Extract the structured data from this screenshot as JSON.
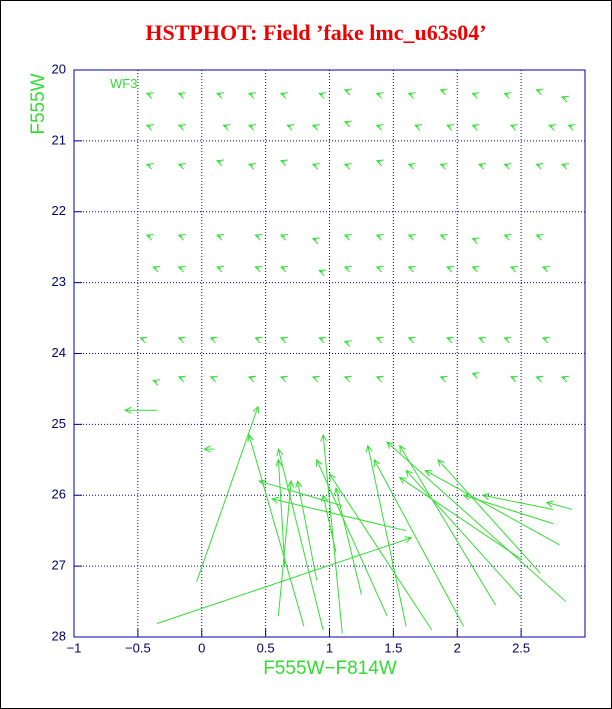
{
  "chart_data": {
    "type": "vector",
    "title": "HSTPHOT: Field ’fake lmc_u63s04’",
    "xlabel": "F555W−F814W",
    "ylabel": "F555W",
    "annotation": "WF3",
    "color": "#33dd33",
    "grid": true,
    "xlim": [
      -1,
      3
    ],
    "ylim": [
      28,
      20
    ],
    "xticks": [
      {
        "value": -1,
        "label": "−1"
      },
      {
        "value": -0.5,
        "label": "−0.5"
      },
      0,
      0.5,
      1,
      1.5,
      2,
      2.5
    ],
    "yticks": [
      20,
      21,
      22,
      23,
      24,
      25,
      26,
      27,
      28
    ],
    "x": [
      -0.35,
      -0.04,
      0.8,
      0.65,
      0.95,
      1.1,
      0.6,
      1.45,
      1.6,
      1.8,
      2.05,
      2.3,
      2.5,
      2.65,
      2.85,
      2.8,
      2.5,
      2.75,
      2.75,
      2.9,
      -0.35,
      0.1,
      1.1,
      1.6,
      1.05,
      0.9,
      1.25,
      -0.4,
      -0.15,
      0.15,
      0.4,
      0.65,
      0.95,
      1.15,
      1.4,
      1.65,
      1.9,
      2.15,
      2.4,
      2.65,
      2.85,
      -0.4,
      -0.15,
      0.2,
      0.4,
      0.7,
      0.9,
      1.15,
      1.4,
      1.7,
      1.95,
      2.15,
      2.45,
      2.75,
      2.9,
      -0.4,
      -0.15,
      0.15,
      0.4,
      0.65,
      0.9,
      1.15,
      1.4,
      1.65,
      1.9,
      2.2,
      2.4,
      2.65,
      2.85,
      -0.4,
      -0.15,
      0.15,
      0.45,
      0.65,
      0.9,
      1.15,
      1.4,
      1.65,
      1.9,
      2.15,
      2.4,
      2.65,
      -0.35,
      -0.15,
      0.15,
      0.45,
      0.65,
      0.95,
      1.15,
      1.4,
      1.65,
      1.95,
      2.15,
      2.45,
      2.7,
      -0.45,
      -0.15,
      0.1,
      0.45,
      0.65,
      0.95,
      1.15,
      1.4,
      1.65,
      1.95,
      2.2,
      2.4,
      2.7,
      -0.35,
      -0.15,
      0.1,
      0.4,
      0.65,
      0.9,
      1.15,
      1.4,
      1.9,
      2.15,
      2.45,
      2.65,
      2.85
    ],
    "y": [
      27.81,
      27.22,
      27.85,
      27.0,
      27.9,
      27.95,
      27.7,
      27.7,
      27.85,
      27.9,
      27.85,
      27.55,
      27.45,
      27.1,
      27.5,
      26.7,
      26.9,
      26.4,
      26.2,
      26.2,
      24.8,
      25.35,
      26.15,
      26.5,
      26.8,
      27.2,
      27.4,
      20.35,
      20.35,
      20.35,
      20.35,
      20.35,
      20.35,
      20.3,
      20.35,
      20.35,
      20.3,
      20.35,
      20.35,
      20.3,
      20.4,
      20.8,
      20.8,
      20.8,
      20.8,
      20.8,
      20.8,
      20.75,
      20.8,
      20.8,
      20.8,
      20.8,
      20.8,
      20.8,
      20.8,
      21.35,
      21.35,
      21.3,
      21.35,
      21.3,
      21.35,
      21.35,
      21.3,
      21.35,
      21.35,
      21.35,
      21.35,
      21.35,
      21.35,
      22.35,
      22.35,
      22.35,
      22.35,
      22.35,
      22.4,
      22.35,
      22.35,
      22.35,
      22.35,
      22.4,
      22.35,
      22.35,
      22.8,
      22.8,
      22.8,
      22.8,
      22.8,
      22.85,
      22.8,
      22.8,
      22.8,
      22.8,
      22.8,
      22.8,
      22.8,
      23.8,
      23.8,
      23.8,
      23.8,
      23.8,
      23.8,
      23.85,
      23.8,
      23.8,
      23.8,
      23.8,
      23.8,
      23.8,
      24.4,
      24.35,
      24.35,
      24.35,
      24.35,
      24.35,
      24.35,
      24.35,
      24.35,
      24.3,
      24.35,
      24.35,
      24.35
    ],
    "x_end": [
      1.64,
      0.44,
      0.37,
      0.6,
      0.6,
      0.95,
      0.7,
      0.9,
      1.3,
      1.0,
      1.35,
      1.55,
      1.6,
      1.85,
      1.45,
      1.75,
      1.55,
      2.05,
      2.2,
      2.7,
      -0.6,
      0.02,
      0.45,
      0.55,
      0.95,
      0.75,
      1.05,
      -0.43,
      -0.18,
      0.12,
      0.37,
      0.62,
      0.92,
      1.12,
      1.37,
      1.62,
      1.87,
      2.12,
      2.37,
      2.62,
      2.82,
      -0.43,
      -0.18,
      0.17,
      0.37,
      0.67,
      0.87,
      1.12,
      1.37,
      1.67,
      1.92,
      2.12,
      2.42,
      2.72,
      2.87,
      -0.43,
      -0.18,
      0.12,
      0.37,
      0.62,
      0.87,
      1.12,
      1.37,
      1.62,
      1.87,
      2.17,
      2.37,
      2.62,
      2.82,
      -0.43,
      -0.18,
      0.12,
      0.42,
      0.62,
      0.87,
      1.12,
      1.37,
      1.62,
      1.87,
      2.12,
      2.37,
      2.62,
      -0.38,
      -0.18,
      0.12,
      0.42,
      0.62,
      0.92,
      1.12,
      1.37,
      1.62,
      1.92,
      2.12,
      2.42,
      2.67,
      -0.48,
      -0.18,
      0.07,
      0.42,
      0.62,
      0.92,
      1.12,
      1.37,
      1.62,
      1.92,
      2.17,
      2.37,
      2.67,
      -0.38,
      -0.18,
      0.07,
      0.37,
      0.62,
      0.87,
      1.12,
      1.37,
      1.87,
      2.12,
      2.42,
      2.62,
      2.82
    ],
    "y_end": [
      26.6,
      24.75,
      25.15,
      25.5,
      25.35,
      25.15,
      25.8,
      25.5,
      25.3,
      25.7,
      25.5,
      25.3,
      25.65,
      25.5,
      25.25,
      25.65,
      25.75,
      26.0,
      26.0,
      26.1,
      24.8,
      25.35,
      25.8,
      26.05,
      26.0,
      25.8,
      25.9,
      20.33,
      20.33,
      20.33,
      20.33,
      20.33,
      20.33,
      20.28,
      20.33,
      20.33,
      20.28,
      20.33,
      20.33,
      20.28,
      20.38,
      20.78,
      20.78,
      20.78,
      20.78,
      20.78,
      20.78,
      20.73,
      20.78,
      20.78,
      20.78,
      20.78,
      20.78,
      20.78,
      20.78,
      21.33,
      21.33,
      21.28,
      21.33,
      21.28,
      21.33,
      21.33,
      21.28,
      21.33,
      21.33,
      21.33,
      21.33,
      21.33,
      21.33,
      22.33,
      22.33,
      22.33,
      22.33,
      22.33,
      22.38,
      22.33,
      22.33,
      22.33,
      22.33,
      22.38,
      22.33,
      22.33,
      22.78,
      22.78,
      22.78,
      22.78,
      22.78,
      22.83,
      22.78,
      22.78,
      22.78,
      22.78,
      22.78,
      22.78,
      22.78,
      23.78,
      23.78,
      23.78,
      23.78,
      23.78,
      23.78,
      23.83,
      23.78,
      23.78,
      23.78,
      23.78,
      23.78,
      23.78,
      24.38,
      24.33,
      24.33,
      24.33,
      24.33,
      24.33,
      24.33,
      24.33,
      24.33,
      24.28,
      24.33,
      24.33,
      24.33
    ]
  }
}
